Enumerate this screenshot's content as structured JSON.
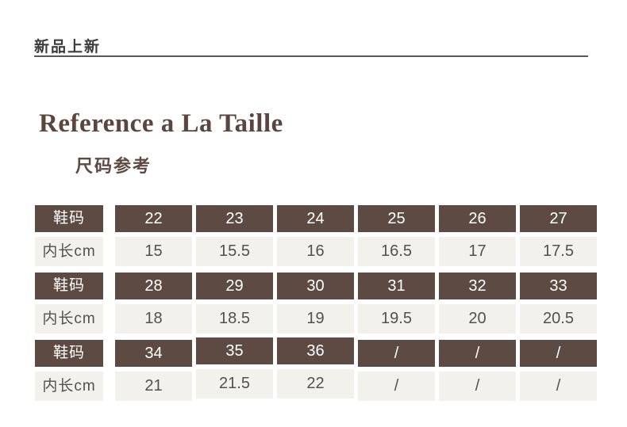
{
  "header": {
    "badge": "新品上新"
  },
  "section": {
    "title": "Reference a La Taille",
    "subtitle": "尺码参考"
  },
  "colors": {
    "header_row_brown": "#5d4a42",
    "value_row_beige": "#f3f1ec",
    "title_brown": "#5a463c",
    "value_text": "#53504d",
    "badge_text": "#3c3c3c"
  },
  "chart_data": {
    "type": "table",
    "title": "Reference a La Taille / 尺码参考",
    "rows": [
      {
        "type": "size",
        "label": "鞋码",
        "values": [
          "22",
          "23",
          "24",
          "25",
          "26",
          "27"
        ]
      },
      {
        "type": "length",
        "label": "内长cm",
        "values": [
          "15",
          "15.5",
          "16",
          "16.5",
          "17",
          "17.5"
        ]
      },
      {
        "type": "size",
        "label": "鞋码",
        "values": [
          "28",
          "29",
          "30",
          "31",
          "32",
          "33"
        ]
      },
      {
        "type": "length",
        "label": "内长cm",
        "values": [
          "18",
          "18.5",
          "19",
          "19.5",
          "20",
          "20.5"
        ]
      },
      {
        "type": "size",
        "label": "鞋码",
        "values": [
          "34",
          "35",
          "36",
          "/",
          "/",
          "/"
        ]
      },
      {
        "type": "length",
        "label": "内长cm",
        "values": [
          "21",
          "21.5",
          "22",
          "/",
          "/",
          "/"
        ]
      }
    ]
  }
}
